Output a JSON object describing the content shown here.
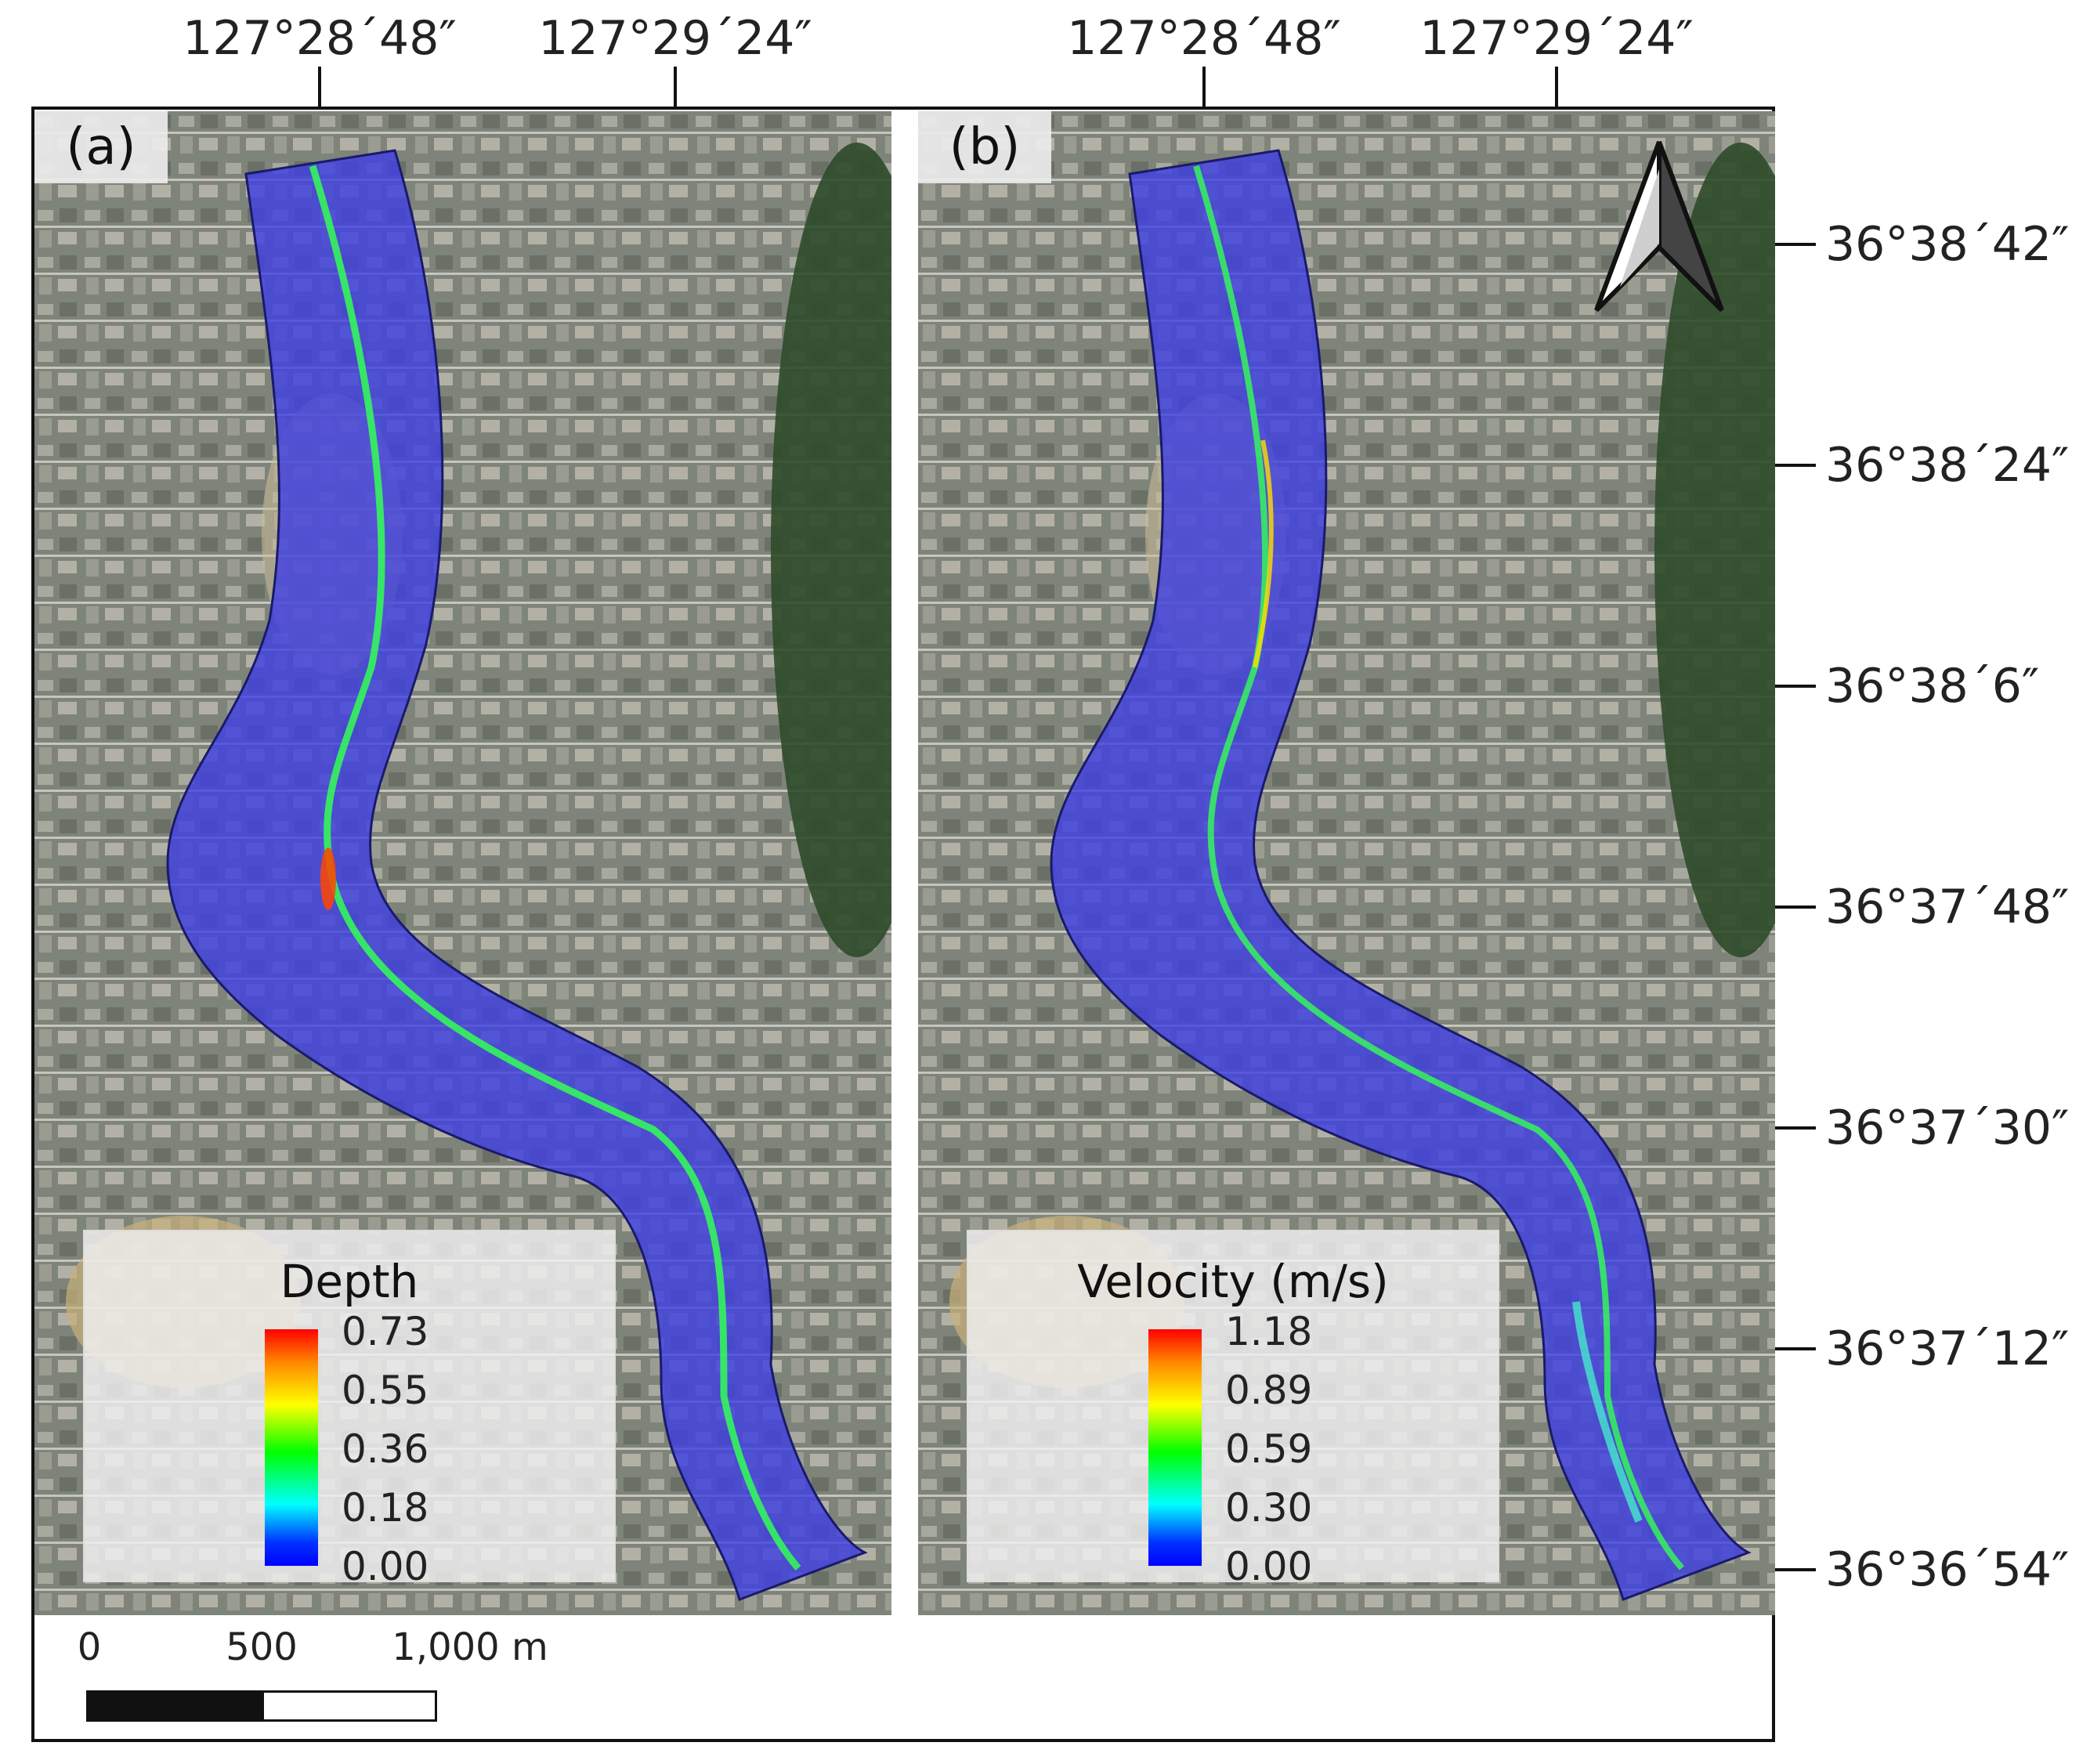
{
  "longitude_labels": [
    "127°28´48″",
    "127°29´24″"
  ],
  "latitude_labels": [
    "36°38´42″",
    "36°38´24″",
    "36°38´6″",
    "36°37´48″",
    "36°37´30″",
    "36°37´12″",
    "36°36´54″"
  ],
  "panels": [
    {
      "label": "(a)",
      "legend": {
        "title": "Depth",
        "ticks": [
          "0.73",
          "0.55",
          "0.36",
          "0.18",
          "0.00"
        ],
        "max": 0.73,
        "min": 0.0
      }
    },
    {
      "label": "(b)",
      "legend": {
        "title": "Velocity (m/s)",
        "ticks": [
          "1.18",
          "0.89",
          "0.59",
          "0.30",
          "0.00"
        ],
        "max": 1.18,
        "min": 0.0
      }
    }
  ],
  "scale_bar": {
    "labels": [
      "0",
      "500",
      "1,000 m"
    ],
    "values_m": [
      0,
      500,
      1000
    ]
  },
  "colors": {
    "river": "#3f3fe0",
    "river_edge": "#1a1a6a",
    "channel": "#33ff55",
    "map_base": "#7d8278",
    "forest": "#2f4a2a"
  },
  "north_arrow": "north-arrow-icon"
}
